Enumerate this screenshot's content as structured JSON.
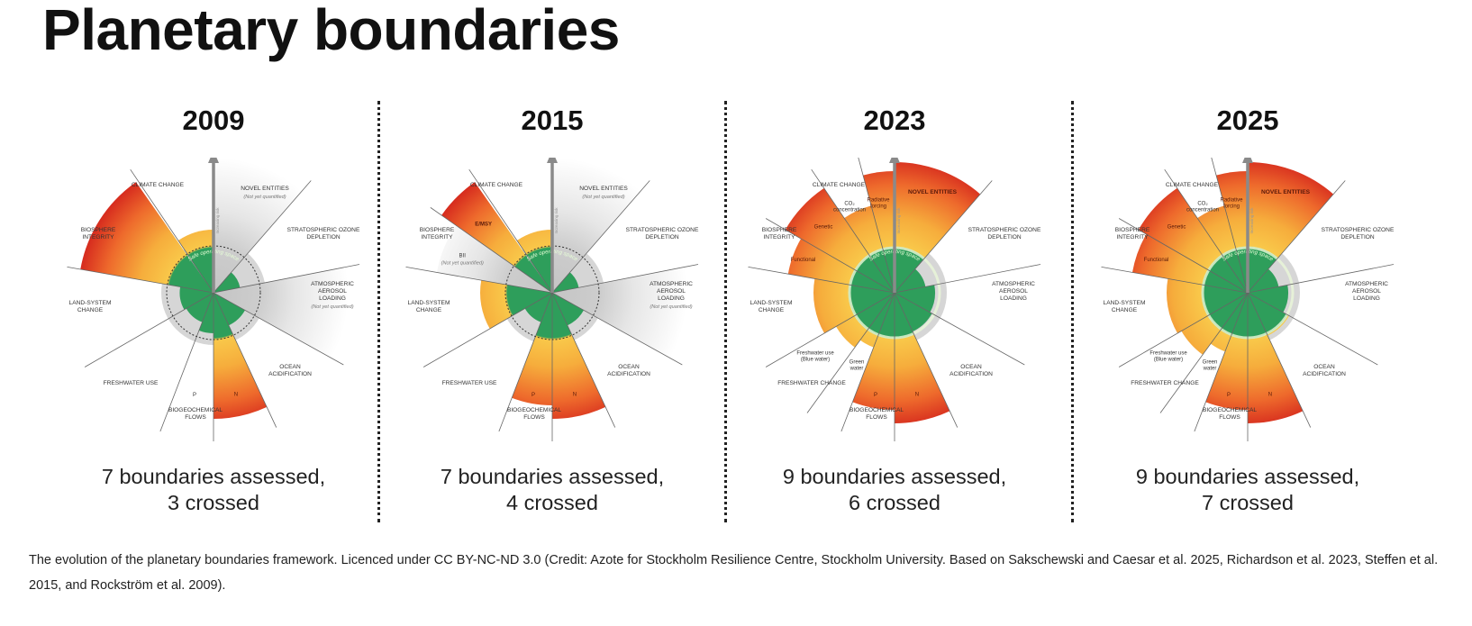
{
  "title": "Planetary boundaries",
  "arrow_label": "Increasing risk",
  "safe_label": "Safe operating space",
  "colors": {
    "safe": "#2e9e5b",
    "warn": "#f6ad3c",
    "high": "#d62b1e",
    "grey": "#cfcfcf"
  },
  "panels": [
    {
      "year": "2009",
      "caption_line1": "7 boundaries assessed,",
      "caption_line2": "3 crossed",
      "dotted_boundary": true,
      "labels": {
        "climate": [
          "CLIMATE CHANGE"
        ],
        "novel": [
          "NOVEL ENTITIES"
        ],
        "novel_note": "(Not yet quantified)",
        "ozone": [
          "STRATOSPHERIC OZONE",
          "DEPLETION"
        ],
        "aerosol": [
          "ATMOSPHERIC",
          "AEROSOL",
          "LOADING"
        ],
        "aerosol_note": "(Not yet quantified)",
        "ocean": [
          "OCEAN",
          "ACIDIFICATION"
        ],
        "biogeo": [
          "BIOGEOCHEMICAL",
          "FLOWS"
        ],
        "fresh": [
          "FRESHWATER USE"
        ],
        "land": [
          "LAND-SYSTEM",
          "CHANGE"
        ],
        "bio": [
          "BIOSPHERE",
          "INTEGRITY"
        ]
      },
      "sectors": [
        {
          "id": "novel",
          "level": 3,
          "quantified": false
        },
        {
          "id": "ozone",
          "level": 0.6,
          "quantified": true
        },
        {
          "id": "aerosol",
          "level": 3,
          "quantified": false
        },
        {
          "id": "ocean",
          "level": 0.8,
          "quantified": true
        },
        {
          "id": "n",
          "level": 2.8,
          "quantified": true,
          "sublabel": "N"
        },
        {
          "id": "p",
          "level": 0.9,
          "quantified": true,
          "sublabel": "P"
        },
        {
          "id": "fresh",
          "level": 0.7,
          "quantified": true
        },
        {
          "id": "land",
          "level": 0.75,
          "quantified": true
        },
        {
          "id": "bio",
          "level": 3,
          "quantified": true
        },
        {
          "id": "climate",
          "level": 1.4,
          "quantified": true
        }
      ]
    },
    {
      "year": "2015",
      "caption_line1": "7 boundaries assessed,",
      "caption_line2": "4 crossed",
      "dotted_boundary": true,
      "labels": {
        "climate": [
          "CLIMATE CHANGE"
        ],
        "novel": [
          "NOVEL ENTITIES"
        ],
        "novel_note": "(Not yet quantified)",
        "ozone": [
          "STRATOSPHERIC OZONE",
          "DEPLETION"
        ],
        "aerosol": [
          "ATMOSPHERIC",
          "AEROSOL",
          "LOADING"
        ],
        "aerosol_note": "(Not yet quantified)",
        "ocean": [
          "OCEAN",
          "ACIDIFICATION"
        ],
        "biogeo": [
          "BIOGEOCHEMICAL",
          "FLOWS"
        ],
        "fresh": [
          "FRESHWATER USE"
        ],
        "land": [
          "LAND-SYSTEM",
          "CHANGE"
        ],
        "bio": [
          "BIOSPHERE",
          "INTEGRITY"
        ]
      },
      "sectors": [
        {
          "id": "novel",
          "level": 3,
          "quantified": false
        },
        {
          "id": "ozone",
          "level": 0.6,
          "quantified": true
        },
        {
          "id": "aerosol",
          "level": 3,
          "quantified": false
        },
        {
          "id": "ocean",
          "level": 0.8,
          "quantified": true
        },
        {
          "id": "n",
          "level": 2.8,
          "quantified": true,
          "sublabel": "N"
        },
        {
          "id": "p",
          "level": 2.5,
          "quantified": true,
          "sublabel": "P"
        },
        {
          "id": "fresh",
          "level": 0.7,
          "quantified": true
        },
        {
          "id": "land",
          "level": 1.6,
          "quantified": true
        },
        {
          "id": "bii",
          "level": 2.6,
          "quantified": false,
          "sublabel": "BII",
          "note": "(Not yet quantified)"
        },
        {
          "id": "emsy",
          "level": 3,
          "quantified": true,
          "sublabel": "E/MSY"
        },
        {
          "id": "climate",
          "level": 1.4,
          "quantified": true
        }
      ]
    },
    {
      "year": "2023",
      "caption_line1": "9 boundaries assessed,",
      "caption_line2": "6 crossed",
      "dotted_boundary": false,
      "labels": {
        "climate": [
          "CLIMATE CHANGE"
        ],
        "novel": [],
        "ozone": [
          "STRATOSPHERIC OZONE",
          "DEPLETION"
        ],
        "aerosol": [
          "ATMOSPHERIC",
          "AEROSOL",
          "LOADING"
        ],
        "ocean": [
          "OCEAN",
          "ACIDIFICATION"
        ],
        "biogeo": [
          "BIOGEOCHEMICAL",
          "FLOWS"
        ],
        "fresh": [
          "FRESHWATER CHANGE"
        ],
        "land": [
          "LAND-SYSTEM",
          "CHANGE"
        ],
        "bio": [
          "BIOSPHERE",
          "INTEGRITY"
        ]
      },
      "sectors": [
        {
          "id": "novel",
          "level": 2.9,
          "quantified": true,
          "sublabel": "NOVEL ENTITIES"
        },
        {
          "id": "ozone",
          "level": 0.7,
          "quantified": true
        },
        {
          "id": "aerosol",
          "level": 0.9,
          "quantified": true
        },
        {
          "id": "ocean",
          "level": 0.95,
          "quantified": true
        },
        {
          "id": "n",
          "level": 2.9,
          "quantified": true,
          "sublabel": "N"
        },
        {
          "id": "p",
          "level": 2.6,
          "quantified": true,
          "sublabel": "P"
        },
        {
          "id": "green",
          "level": 1.3,
          "quantified": true,
          "sublabel": "Green water"
        },
        {
          "id": "blue",
          "level": 1.5,
          "quantified": true,
          "sublabel": "Freshwater use (Blue water)"
        },
        {
          "id": "land",
          "level": 1.8,
          "quantified": true
        },
        {
          "id": "functional",
          "level": 2.4,
          "quantified": true,
          "sublabel": "Functional"
        },
        {
          "id": "genetic",
          "level": 2.8,
          "quantified": true,
          "sublabel": "Genetic"
        },
        {
          "id": "co2",
          "level": 2.0,
          "quantified": true,
          "sublabel": "CO₂ concentration"
        },
        {
          "id": "radiative",
          "level": 2.7,
          "quantified": true,
          "sublabel": "Radiative forcing"
        }
      ]
    },
    {
      "year": "2025",
      "caption_line1": "9 boundaries assessed,",
      "caption_line2": "7 crossed",
      "dotted_boundary": false,
      "labels": {
        "climate": [
          "CLIMATE CHANGE"
        ],
        "novel": [],
        "ozone": [
          "STRATOSPHERIC OZONE",
          "DEPLETION"
        ],
        "aerosol": [
          "ATMOSPHERIC",
          "AEROSOL",
          "LOADING"
        ],
        "ocean": [
          "OCEAN",
          "ACIDIFICATION"
        ],
        "biogeo": [
          "BIOGEOCHEMICAL",
          "FLOWS"
        ],
        "fresh": [
          "FRESHWATER CHANGE"
        ],
        "land": [
          "LAND-SYSTEM",
          "CHANGE"
        ],
        "bio": [
          "BIOSPHERE",
          "INTEGRITY"
        ]
      },
      "sectors": [
        {
          "id": "novel",
          "level": 2.9,
          "quantified": true,
          "sublabel": "NOVEL ENTITIES"
        },
        {
          "id": "ozone",
          "level": 0.7,
          "quantified": true
        },
        {
          "id": "aerosol",
          "level": 0.9,
          "quantified": true
        },
        {
          "id": "ocean",
          "level": 1.05,
          "quantified": true
        },
        {
          "id": "n",
          "level": 2.9,
          "quantified": true,
          "sublabel": "N"
        },
        {
          "id": "p",
          "level": 2.6,
          "quantified": true,
          "sublabel": "P"
        },
        {
          "id": "green",
          "level": 1.4,
          "quantified": true,
          "sublabel": "Green water"
        },
        {
          "id": "blue",
          "level": 1.7,
          "quantified": true,
          "sublabel": "Freshwater use (Blue water)"
        },
        {
          "id": "land",
          "level": 1.8,
          "quantified": true
        },
        {
          "id": "functional",
          "level": 2.6,
          "quantified": true,
          "sublabel": "Functional"
        },
        {
          "id": "genetic",
          "level": 2.8,
          "quantified": true,
          "sublabel": "Genetic"
        },
        {
          "id": "co2",
          "level": 2.0,
          "quantified": true,
          "sublabel": "CO₂ concentration"
        },
        {
          "id": "radiative",
          "level": 2.7,
          "quantified": true,
          "sublabel": "Radiative forcing"
        }
      ]
    }
  ],
  "footnote": "The evolution of the planetary boundaries framework. Licenced under CC BY-NC-ND 3.0 (Credit: Azote for Stockholm Resilience Centre, Stockholm University. Based on Sakschewski and Caesar et al. 2025, Richardson et al. 2023, Steffen et al. 2015, and Rockström et al. 2009)."
}
